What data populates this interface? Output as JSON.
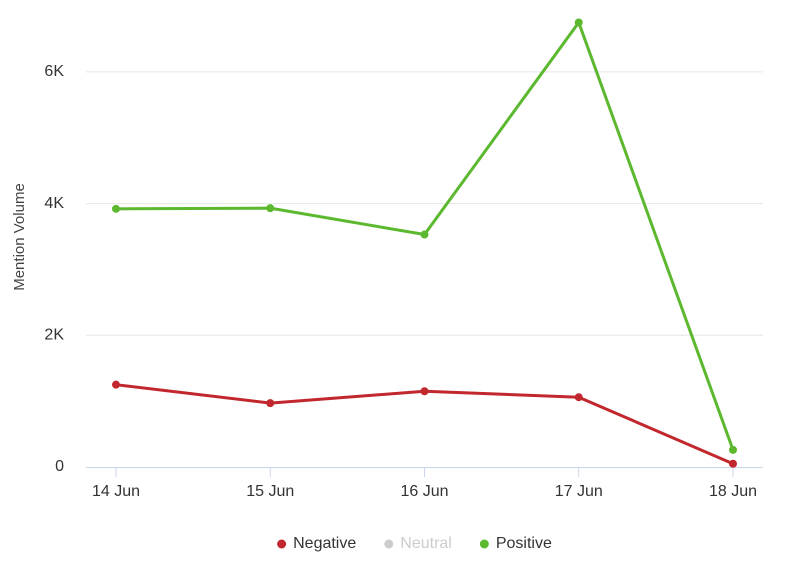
{
  "chart_data": {
    "type": "line",
    "y_label": "Mention Volume",
    "categories": [
      "14 Jun",
      "15 Jun",
      "16 Jun",
      "17 Jun",
      "18 Jun"
    ],
    "series": [
      {
        "name": "Negative",
        "color": "#c1272d",
        "visible": true,
        "values": [
          1250,
          970,
          1150,
          1060,
          50
        ]
      },
      {
        "name": "Neutral",
        "color": "#cccccc",
        "visible": false,
        "values": [
          null,
          null,
          null,
          null,
          null
        ]
      },
      {
        "name": "Positive",
        "color": "#5cb82e",
        "visible": true,
        "values": [
          3920,
          3930,
          3530,
          6750,
          260
        ]
      }
    ],
    "ylim": [
      0,
      7000
    ],
    "yticks": [
      0,
      {
        "value": 2000,
        "label": "2K"
      },
      {
        "value": 4000,
        "label": "4K"
      },
      {
        "value": 6000,
        "label": "6K"
      }
    ],
    "grid": true,
    "legend": "bottom"
  }
}
